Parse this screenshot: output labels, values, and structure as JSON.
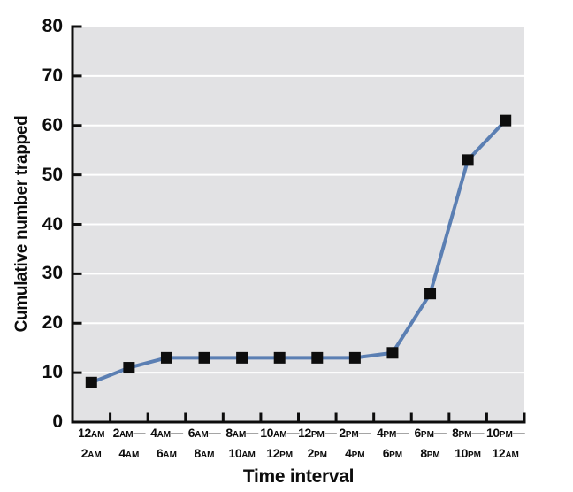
{
  "chart_data": {
    "type": "line",
    "title": "",
    "xlabel": "Time interval",
    "ylabel": "Cumulative number trapped",
    "ylim": [
      0,
      80
    ],
    "yticks": [
      0,
      10,
      20,
      30,
      40,
      50,
      60,
      70,
      80
    ],
    "grid": true,
    "legend": "none",
    "categories": [
      "12AM–2AM",
      "2AM–4AM",
      "4AM–6AM",
      "6AM–8AM",
      "8AM–10AM",
      "10AM–12PM",
      "12PM–2PM",
      "2PM–4PM",
      "4PM–6PM",
      "6PM–8PM",
      "8PM–10PM",
      "10PM–12AM"
    ],
    "x_tick_labels": [
      {
        "line1": "12AM",
        "line2": "2AM"
      },
      {
        "line1": "2AM—",
        "line2": "4AM"
      },
      {
        "line1": "4AM—",
        "line2": "6AM"
      },
      {
        "line1": "6AM—",
        "line2": "8AM"
      },
      {
        "line1": "8AM—",
        "line2": "10AM"
      },
      {
        "line1": "10AM—",
        "line2": "12PM"
      },
      {
        "line1": "12PM—",
        "line2": "2PM"
      },
      {
        "line1": "2PM—",
        "line2": "4PM"
      },
      {
        "line1": "4PM—",
        "line2": "6PM"
      },
      {
        "line1": "6PM—",
        "line2": "8PM"
      },
      {
        "line1": "8PM—",
        "line2": "10PM"
      },
      {
        "line1": "10PM—",
        "line2": "12AM"
      }
    ],
    "series": [
      {
        "name": "Cumulative number trapped",
        "values": [
          8,
          11,
          13,
          13,
          13,
          13,
          13,
          13,
          14,
          26,
          53,
          61
        ]
      }
    ],
    "marker": "black-square",
    "colors": {
      "line": "#5b7fb3",
      "marker": "#0d0d0d",
      "plot_background": "#e2e2e4",
      "gridline": "#ffffff",
      "axis": "#0d0d0d",
      "text": "#0d0d0d",
      "page_background": "#ffffff"
    }
  }
}
